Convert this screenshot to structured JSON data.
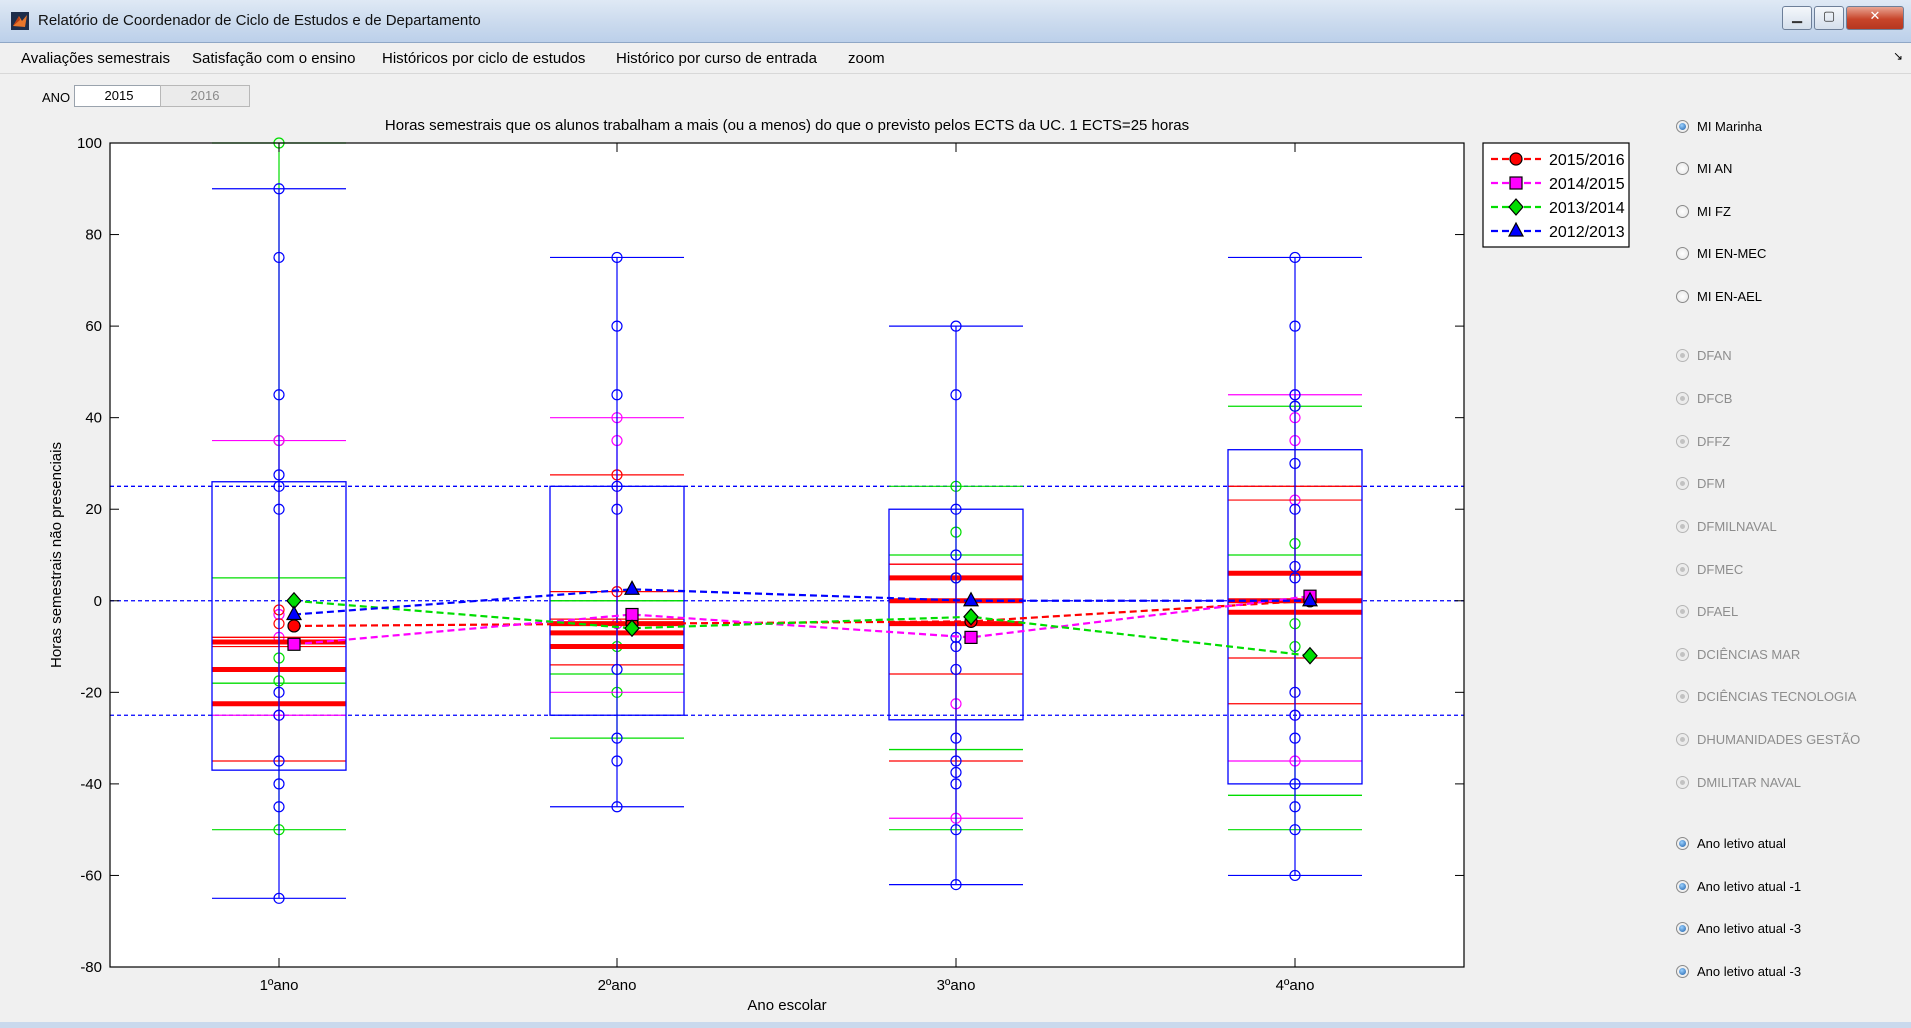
{
  "window": {
    "title": "Relatório de Coordenador de Ciclo de Estudos e de Departamento",
    "controls": [
      "minimize-icon",
      "maximize-icon",
      "close-icon"
    ],
    "close_glyph": "✕"
  },
  "menu": {
    "items": [
      "Avaliações semestrais",
      "Satisfação com o ensino",
      "Históricos por ciclo de estudos",
      "Histórico por curso de entrada",
      "zoom"
    ],
    "overflow_glyph": "↘"
  },
  "year_selector": {
    "label": "ANO",
    "options": [
      "2015",
      "2016"
    ],
    "selected": "2015"
  },
  "radio_groups": {
    "courses": [
      {
        "label": "MI Marinha",
        "checked": true
      },
      {
        "label": "MI AN",
        "checked": false
      },
      {
        "label": "MI FZ",
        "checked": false
      },
      {
        "label": "MI EN-MEC",
        "checked": false
      },
      {
        "label": "MI EN-AEL",
        "checked": false
      }
    ],
    "departments": [
      {
        "label": "DFAN",
        "enabled": false
      },
      {
        "label": "DFCB",
        "enabled": false
      },
      {
        "label": "DFFZ",
        "enabled": false
      },
      {
        "label": "DFM",
        "enabled": false
      },
      {
        "label": "DFMILNAVAL",
        "enabled": false
      },
      {
        "label": "DFMEC",
        "enabled": false
      },
      {
        "label": "DFAEL",
        "enabled": false
      },
      {
        "label": "DCIÊNCIAS MAR",
        "enabled": false
      },
      {
        "label": "DCIÊNCIAS TECNOLOGIA",
        "enabled": false
      },
      {
        "label": "DHUMANIDADES GESTÃO",
        "enabled": false
      },
      {
        "label": "DMILITAR NAVAL",
        "enabled": false
      }
    ],
    "years": [
      {
        "label": "Ano letivo atual",
        "checked": true
      },
      {
        "label": "Ano letivo atual -1",
        "checked": true
      },
      {
        "label": "Ano letivo atual -3",
        "checked": true
      },
      {
        "label": "Ano letivo atual -3",
        "checked": true
      }
    ]
  },
  "colors": {
    "s2015": "#ff0000",
    "s2014": "#ff00ff",
    "s2013": "#00dd00",
    "s2012": "#0000ff",
    "reference_line": "#0000ff"
  },
  "chart_data": {
    "type": "box",
    "title": "Horas semestrais que os alunos trabalham a mais (ou a menos) do que o previsto pelos ECTS da UC. 1 ECTS=25 horas",
    "xlabel": "Ano escolar",
    "ylabel": "Horas semestrais não presenciais",
    "categories": [
      "1ºano",
      "2ºano",
      "3ºano",
      "4ºano"
    ],
    "ylim": [
      -80,
      100
    ],
    "yticks": [
      -80,
      -60,
      -40,
      -20,
      0,
      20,
      40,
      60,
      80,
      100
    ],
    "reference_lines": [
      25,
      0,
      -25
    ],
    "legend_position": "top-right",
    "series": [
      {
        "name": "2015/2016",
        "color": "#ff0000",
        "marker": "circle",
        "means": [
          -5.5,
          -5,
          -4.5,
          0
        ],
        "boxes": [
          {
            "median": -15,
            "q1": -22.5,
            "q3": -9,
            "whisker_low": -35,
            "whisker_high": -8,
            "extra_lines": [
              -10,
              -8
            ],
            "outliers": [
              -2,
              -5
            ]
          },
          {
            "median": -7,
            "q1": -10,
            "q3": -5,
            "whisker_low": -14,
            "whisker_high": 27.5,
            "extra_lines": [
              -4,
              2
            ],
            "outliers": [
              2,
              27.5
            ]
          },
          {
            "median": 0,
            "q1": -5,
            "q3": 5,
            "whisker_low": -35,
            "whisker_high": 8,
            "extra_lines": [
              -16,
              8
            ],
            "outliers": []
          },
          {
            "median": 0,
            "q1": -2.5,
            "q3": 6,
            "whisker_low": -22.5,
            "whisker_high": 25,
            "extra_lines": [
              -12.5,
              22,
              25
            ],
            "outliers": []
          }
        ]
      },
      {
        "name": "2014/2015",
        "color": "#ff00ff",
        "marker": "square",
        "means": [
          -9.5,
          -3,
          -8,
          1
        ],
        "boxes": [
          {
            "whisker_low": -25,
            "whisker_high": 35,
            "outliers": [
              35,
              -3,
              -8,
              -25
            ]
          },
          {
            "whisker_low": -20,
            "whisker_high": 40,
            "outliers": [
              35,
              40,
              -5
            ]
          },
          {
            "whisker_low": -47.5,
            "whisker_high": 8,
            "outliers": [
              -22.5,
              -47.5
            ]
          },
          {
            "whisker_low": -35,
            "whisker_high": 45,
            "outliers": [
              35,
              40,
              22,
              45,
              -35,
              -25
            ]
          }
        ]
      },
      {
        "name": "2013/2014",
        "color": "#00dd00",
        "marker": "diamond",
        "means": [
          0,
          -6,
          -3.5,
          -12
        ],
        "boxes": [
          {
            "whisker_low": -50,
            "whisker_high": 100,
            "q1": -18,
            "q3": 5,
            "outliers": [
              100,
              35,
              -12.5,
              -17.5,
              -50
            ]
          },
          {
            "whisker_low": -30,
            "whisker_high": 0,
            "q1": -16,
            "q3": 0,
            "outliers": [
              -10,
              -20
            ]
          },
          {
            "whisker_low": -50,
            "whisker_high": 25,
            "q1": -32.5,
            "q3": 10,
            "outliers": [
              25,
              15,
              5
            ]
          },
          {
            "whisker_low": -50,
            "whisker_high": 42.5,
            "q1": -42.5,
            "q3": 10,
            "outliers": [
              12.5,
              -5,
              -10,
              42.5
            ]
          }
        ]
      },
      {
        "name": "2012/2013",
        "color": "#0000ff",
        "marker": "triangle",
        "means": [
          -3,
          2.5,
          0,
          0
        ],
        "boxes": [
          {
            "q1": -37,
            "q3": 26,
            "whisker_low": -65,
            "whisker_high": 90,
            "outliers": [
              90,
              75,
              45,
              27.5,
              25,
              20,
              -20,
              -25,
              -35,
              -40,
              -45,
              -65
            ]
          },
          {
            "q1": -25,
            "q3": 25,
            "whisker_low": -45,
            "whisker_high": 75,
            "outliers": [
              75,
              60,
              45,
              25,
              20,
              -15,
              -30,
              -35,
              -45
            ]
          },
          {
            "q1": -26,
            "q3": 20,
            "whisker_low": -62,
            "whisker_high": 60,
            "outliers": [
              60,
              45,
              20,
              10,
              5,
              -8,
              -10,
              -15,
              -30,
              -35,
              -37.5,
              -40,
              -50,
              -62
            ]
          },
          {
            "q1": -40,
            "q3": 33,
            "whisker_low": -60,
            "whisker_high": 75,
            "outliers": [
              75,
              60,
              45,
              42.5,
              30,
              20,
              7.5,
              5,
              -20,
              -25,
              -30,
              -40,
              -45,
              -50,
              -60
            ]
          }
        ]
      }
    ]
  }
}
